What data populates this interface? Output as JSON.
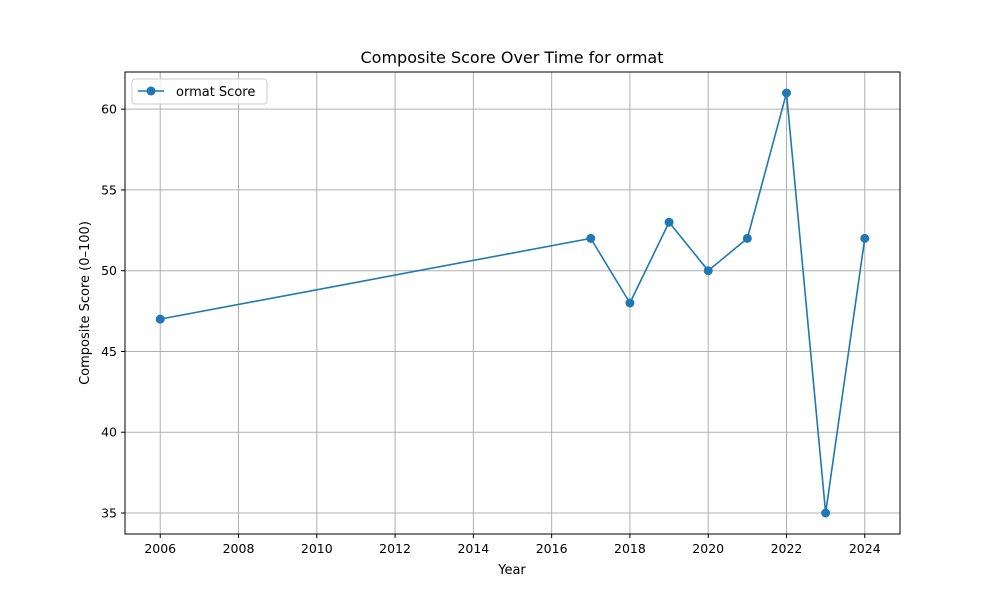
{
  "chart_data": {
    "type": "line",
    "title": "Composite Score Over Time for ormat",
    "xlabel": "Year",
    "ylabel": "Composite Score (0–100)",
    "x": [
      2006,
      2017,
      2018,
      2019,
      2020,
      2021,
      2022,
      2023,
      2024
    ],
    "series": [
      {
        "name": "ormat Score",
        "values": [
          47,
          52,
          48,
          53,
          50,
          52,
          61,
          35,
          52
        ],
        "color": "#1f77b4",
        "marker": "circle"
      }
    ],
    "xlim": [
      2005.1,
      2024.9
    ],
    "ylim": [
      33.7,
      62.3
    ],
    "xticks": [
      "2006",
      "2008",
      "2010",
      "2012",
      "2014",
      "2016",
      "2018",
      "2020",
      "2022",
      "2024"
    ],
    "yticks": [
      "35",
      "40",
      "45",
      "50",
      "55",
      "60"
    ],
    "grid": true,
    "legend_position": "top-left"
  }
}
